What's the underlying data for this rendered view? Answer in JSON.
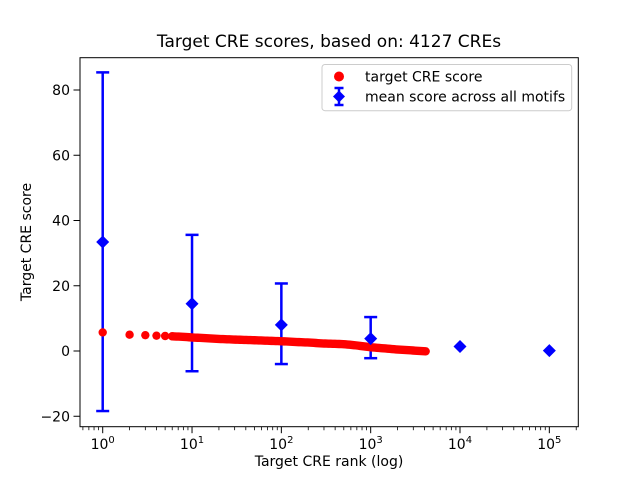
{
  "chart_data": {
    "type": "scatter",
    "title": "Target CRE scores, based on: 4127 CREs",
    "xlabel": "Target CRE rank (log)",
    "ylabel": "Target CRE score",
    "xscale": "log",
    "xlim": [
      0.557,
      211000
    ],
    "ylim": [
      -23.2,
      89.9
    ],
    "x_tick_exponents": [
      0,
      1,
      2,
      3,
      4,
      5
    ],
    "x_tick_base": "10",
    "y_ticks": [
      -20,
      0,
      20,
      40,
      60,
      80
    ],
    "grid": false,
    "legend_position": "upper right",
    "total_points_series_0": 4127,
    "series": [
      {
        "name": "target CRE score",
        "marker": "circle",
        "color": "#ff0000",
        "points": [
          [
            1,
            5.7
          ],
          [
            2,
            5.0
          ],
          [
            3,
            4.85
          ],
          [
            4,
            4.7
          ],
          [
            5,
            4.6
          ],
          [
            6,
            4.5
          ],
          [
            8,
            4.35
          ],
          [
            10,
            4.15
          ],
          [
            15,
            3.9
          ],
          [
            20,
            3.7
          ],
          [
            30,
            3.5
          ],
          [
            50,
            3.3
          ],
          [
            70,
            3.15
          ],
          [
            100,
            3.0
          ],
          [
            150,
            2.75
          ],
          [
            200,
            2.6
          ],
          [
            300,
            2.3
          ],
          [
            500,
            2.1
          ],
          [
            700,
            1.7
          ],
          [
            1000,
            1.15
          ],
          [
            1500,
            0.75
          ],
          [
            2000,
            0.45
          ],
          [
            3000,
            0.15
          ],
          [
            4127,
            -0.1
          ]
        ]
      },
      {
        "name": "mean score across all motifs",
        "marker": "diamond",
        "color": "#0000ff",
        "points": [
          {
            "x": 1,
            "y": 33.4,
            "err_lo": -18.4,
            "err_hi": 85.4
          },
          {
            "x": 10,
            "y": 14.5,
            "err_lo": -6.2,
            "err_hi": 35.6
          },
          {
            "x": 100,
            "y": 8.0,
            "err_lo": -4.0,
            "err_hi": 20.7
          },
          {
            "x": 1000,
            "y": 3.8,
            "err_lo": -2.2,
            "err_hi": 10.4
          },
          {
            "x": 10000,
            "y": 1.4,
            "err_lo": null,
            "err_hi": null
          },
          {
            "x": 100000,
            "y": 0.1,
            "err_lo": null,
            "err_hi": null
          }
        ]
      }
    ]
  },
  "colors": {
    "spine": "#000000",
    "legend_border": "#cccccc",
    "background": "#ffffff"
  }
}
